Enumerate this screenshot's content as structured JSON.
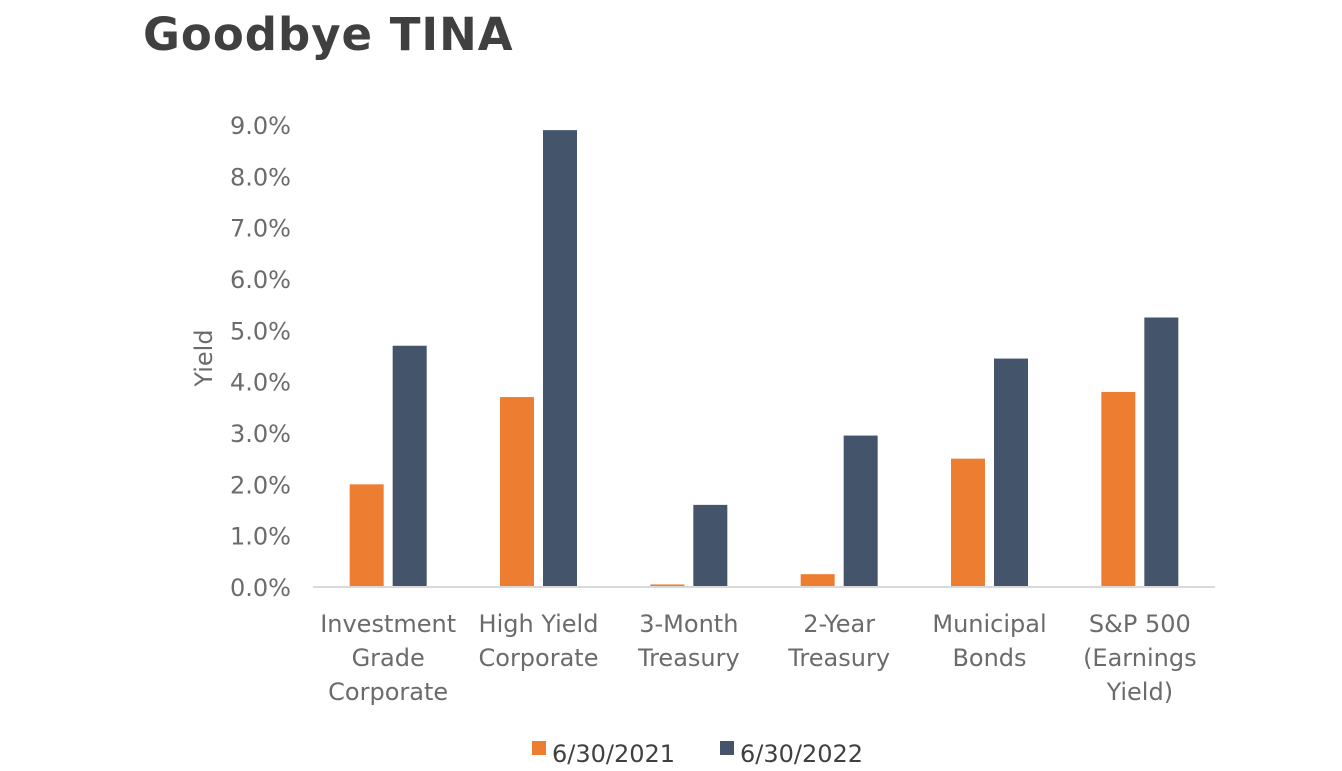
{
  "title": "Goodbye TINA",
  "chart_data": {
    "type": "bar",
    "ylabel": "Yield",
    "xlabel": "",
    "ylim": [
      0,
      9
    ],
    "yticks": [
      "0.0%",
      "1.0%",
      "2.0%",
      "3.0%",
      "4.0%",
      "5.0%",
      "6.0%",
      "7.0%",
      "8.0%",
      "9.0%"
    ],
    "categories": [
      [
        "Investment",
        "Grade",
        "Corporate"
      ],
      [
        "High Yield",
        "Corporate"
      ],
      [
        "3-Month",
        "Treasury"
      ],
      [
        "2-Year",
        "Treasury"
      ],
      [
        "Municipal",
        "Bonds"
      ],
      [
        "S&P 500",
        "(Earnings",
        "Yield)"
      ]
    ],
    "series": [
      {
        "name": "6/30/2021",
        "color": "#ed7d31",
        "values": [
          2.0,
          3.7,
          0.05,
          0.25,
          2.5,
          3.8
        ]
      },
      {
        "name": "6/30/2022",
        "color": "#44546a",
        "values": [
          4.7,
          8.9,
          1.6,
          2.95,
          4.45,
          5.25
        ]
      }
    ],
    "legend": "bottom",
    "grid": false
  }
}
